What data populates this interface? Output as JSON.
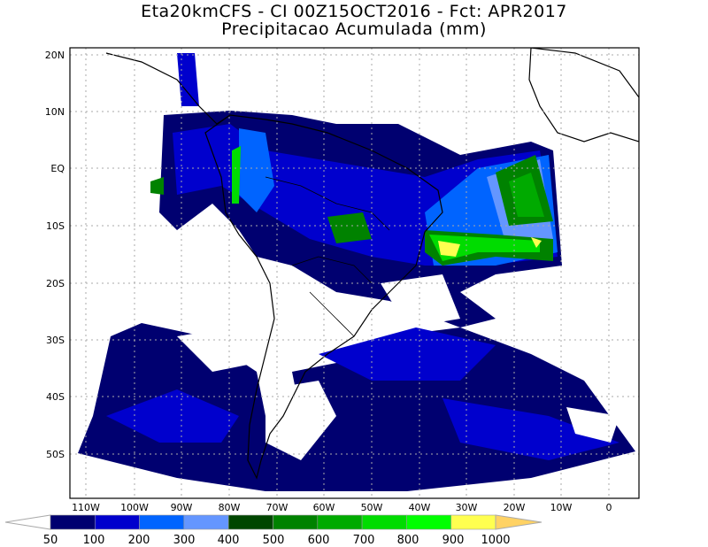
{
  "title": {
    "line1": "Eta20kmCFS - CI 00Z15OCT2016 - Fct: APR2017",
    "line2": "Precipitacao Acumulada (mm)"
  },
  "map": {
    "lat_labels": [
      "20N",
      "10N",
      "EQ",
      "10S",
      "20S",
      "30S",
      "40S",
      "50S"
    ],
    "lon_labels": [
      "110W",
      "100W",
      "90W",
      "80W",
      "70W",
      "60W",
      "50W",
      "40W",
      "30W",
      "20W",
      "10W",
      "0"
    ],
    "grid": true,
    "grid_style": "dotted"
  },
  "colorbar": {
    "labels": [
      "50",
      "100",
      "200",
      "300",
      "400",
      "500",
      "600",
      "700",
      "800",
      "900",
      "1000"
    ],
    "colors": [
      "#000070",
      "#0000cd",
      "#0064ff",
      "#6496ff",
      "#004600",
      "#008200",
      "#00aa00",
      "#00dc00",
      "#00ff00",
      "#ffff50",
      "#ffd264"
    ],
    "below_color": "#ffffff",
    "above_color": "#ffd264"
  }
}
